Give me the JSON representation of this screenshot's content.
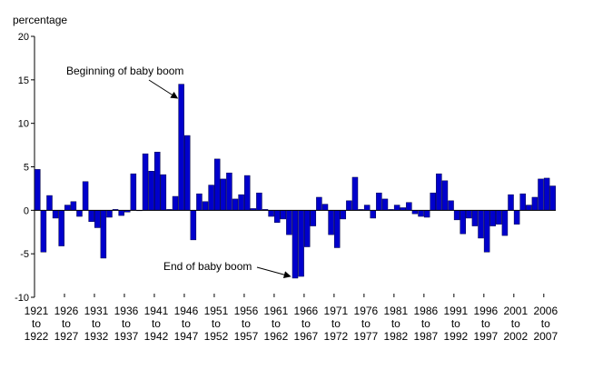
{
  "chart_data": {
    "type": "bar",
    "ylabel": "percentage",
    "ylim": [
      -10,
      20
    ],
    "yticks": [
      "-10",
      "-5",
      "0",
      "5",
      "10",
      "15",
      "20"
    ],
    "grid": false,
    "legend": "none",
    "bar_color": "#0000cc",
    "x_tick_labels": [
      {
        "start": "1921",
        "to": "to",
        "end": "1922",
        "index": 0
      },
      {
        "start": "1926",
        "to": "to",
        "end": "1927",
        "index": 5
      },
      {
        "start": "1931",
        "to": "to",
        "end": "1932",
        "index": 10
      },
      {
        "start": "1936",
        "to": "to",
        "end": "1937",
        "index": 15
      },
      {
        "start": "1941",
        "to": "to",
        "end": "1942",
        "index": 20
      },
      {
        "start": "1946",
        "to": "to",
        "end": "1947",
        "index": 25
      },
      {
        "start": "1951",
        "to": "to",
        "end": "1952",
        "index": 30
      },
      {
        "start": "1956",
        "to": "to",
        "end": "1957",
        "index": 35
      },
      {
        "start": "1961",
        "to": "to",
        "end": "1962",
        "index": 40
      },
      {
        "start": "1966",
        "to": "to",
        "end": "1967",
        "index": 45
      },
      {
        "start": "1971",
        "to": "to",
        "end": "1972",
        "index": 50
      },
      {
        "start": "1976",
        "to": "to",
        "end": "1977",
        "index": 55
      },
      {
        "start": "1981",
        "to": "to",
        "end": "1982",
        "index": 60
      },
      {
        "start": "1986",
        "to": "to",
        "end": "1987",
        "index": 65
      },
      {
        "start": "1991",
        "to": "to",
        "end": "1992",
        "index": 70
      },
      {
        "start": "1996",
        "to": "to",
        "end": "1997",
        "index": 75
      },
      {
        "start": "2001",
        "to": "to",
        "end": "2002",
        "index": 80
      },
      {
        "start": "2006",
        "to": "to",
        "end": "2007",
        "index": 85
      }
    ],
    "values": [
      4.7,
      -4.8,
      1.7,
      -0.9,
      -4.1,
      0.6,
      1.0,
      -0.7,
      3.3,
      -1.3,
      -2.0,
      -5.5,
      -0.8,
      0.1,
      -0.6,
      -0.2,
      4.2,
      0.0,
      6.5,
      4.5,
      6.7,
      4.1,
      0.1,
      1.6,
      14.5,
      8.6,
      -3.4,
      1.9,
      1.0,
      2.9,
      5.9,
      3.6,
      4.3,
      1.3,
      1.8,
      4.0,
      0.2,
      2.0,
      0.1,
      -0.7,
      -1.4,
      -1.0,
      -2.8,
      -7.8,
      -7.6,
      -4.2,
      -1.8,
      1.5,
      0.7,
      -2.8,
      -4.3,
      -1.0,
      1.1,
      3.8,
      0.1,
      0.6,
      -0.9,
      2.0,
      1.3,
      0.1,
      0.6,
      0.3,
      0.9,
      -0.4,
      -0.7,
      -0.8,
      2.0,
      4.2,
      3.4,
      1.1,
      -1.1,
      -2.7,
      -0.9,
      -1.8,
      -3.2,
      -4.8,
      -1.8,
      -1.6,
      -2.9,
      1.8,
      -1.6,
      1.9,
      0.6,
      1.5,
      3.6,
      3.7,
      2.8
    ],
    "annotations": [
      {
        "text": "Beginning of baby boom",
        "target_index": 24
      },
      {
        "text": "End of baby boom",
        "target_index": 43
      }
    ]
  }
}
